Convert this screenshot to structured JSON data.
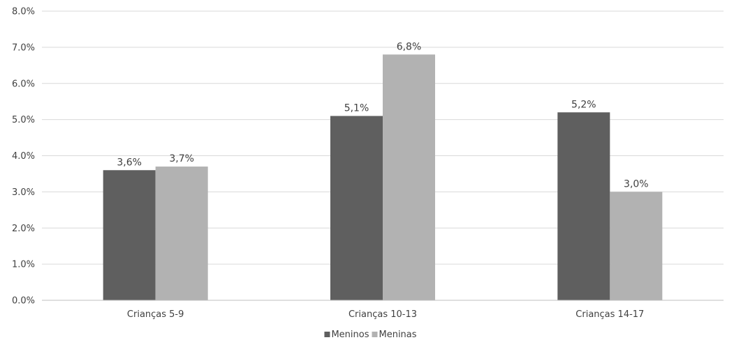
{
  "chart_data": {
    "type": "bar",
    "title": "",
    "xlabel": "",
    "ylabel": "",
    "categories": [
      "Crianças 5-9",
      "Crianças 10-13",
      "Crianças 14-17"
    ],
    "series": [
      {
        "name": "Meninos",
        "values": [
          3.6,
          5.1,
          5.2
        ],
        "labels": [
          "3,6%",
          "5,1%",
          "5,2%"
        ],
        "color": "#5f5f5f"
      },
      {
        "name": "Meninas",
        "values": [
          3.7,
          6.8,
          3.0
        ],
        "labels": [
          "3,7%",
          "6,8%",
          "3,0%"
        ],
        "color": "#b2b2b2"
      }
    ],
    "ylim": [
      0,
      8
    ],
    "yticks": [
      0,
      1,
      2,
      3,
      4,
      5,
      6,
      7,
      8
    ],
    "ytick_labels": [
      "0.0%",
      "1.0%",
      "2.0%",
      "3.0%",
      "4.0%",
      "5.0%",
      "6.0%",
      "7.0%",
      "8.0%"
    ],
    "grid": true,
    "gridline_color": "#d9d9d9",
    "legend_position": "bottom"
  }
}
